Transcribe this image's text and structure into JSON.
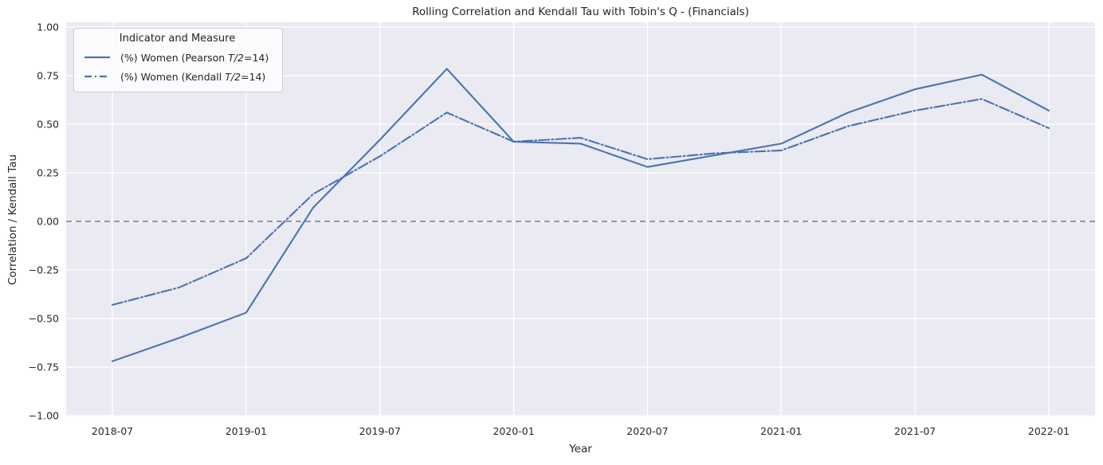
{
  "chart_data": {
    "type": "line",
    "title": "Rolling Correlation and Kendall Tau with Tobin's Q - (Financials)",
    "xlabel": "Year",
    "ylabel": "Correlation / Kendall Tau",
    "x": [
      "2018-07",
      "2018-10",
      "2019-01",
      "2019-04",
      "2019-07",
      "2019-10",
      "2020-01",
      "2020-04",
      "2020-07",
      "2020-10",
      "2021-01",
      "2021-04",
      "2021-07",
      "2021-10",
      "2022-01"
    ],
    "x_tick_labels": [
      "2018-07",
      "2019-01",
      "2019-07",
      "2020-01",
      "2020-07",
      "2021-01",
      "2021-07",
      "2022-01"
    ],
    "y_ticks": [
      1.0,
      0.75,
      0.5,
      0.25,
      0.0,
      -0.25,
      -0.5,
      -0.75,
      -1.0
    ],
    "y_tick_labels": [
      "1.00",
      "0.75",
      "0.50",
      "0.25",
      "0.00",
      "−0.25",
      "−0.50",
      "−0.75",
      "−1.00"
    ],
    "ylim": [
      -1.0,
      1.0
    ],
    "grid": true,
    "zero_line": true,
    "legend_position": "upper left",
    "series": [
      {
        "name": "(%) Women (Pearson T/2=14)",
        "style": "solid",
        "color": "#4c72b0",
        "values": [
          -0.72,
          -0.6,
          -0.47,
          0.07,
          0.42,
          0.785,
          0.41,
          0.4,
          0.28,
          0.34,
          0.4,
          0.56,
          0.68,
          0.755,
          0.57
        ]
      },
      {
        "name": "(%) Women (Kendall T/2=14)",
        "style": "dashdot",
        "color": "#4c72b0",
        "values": [
          -0.43,
          -0.34,
          -0.19,
          0.14,
          0.335,
          0.56,
          0.41,
          0.43,
          0.32,
          0.35,
          0.365,
          0.49,
          0.57,
          0.63,
          0.48
        ]
      }
    ],
    "legend": {
      "title": "Indicator and Measure",
      "items": [
        {
          "pre": "(%) Women (Pearson ",
          "math": "T/2",
          "post": "=14)"
        },
        {
          "pre": "(%) Women (Kendall ",
          "math": "T/2",
          "post": "=14)"
        }
      ]
    },
    "colors": {
      "line": "#4c72b0",
      "axes_bg": "#eaeaf2",
      "grid": "#ffffff",
      "zero_line": "#7f7f7f",
      "text": "#262626",
      "legend_border": "#cccccc"
    }
  }
}
